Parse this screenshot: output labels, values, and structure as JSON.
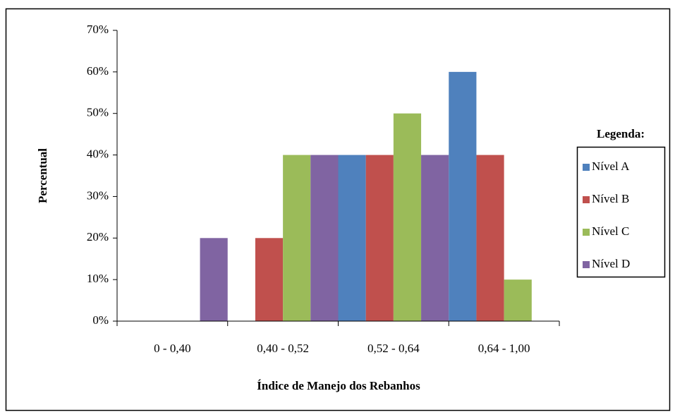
{
  "chart_data": {
    "type": "bar",
    "x_label": "Índice de Manejo dos Rebanhos",
    "y_label": "Percentual",
    "legend_title": "Legenda:",
    "categories": [
      "0 - 0,40",
      "0,40 - 0,52",
      "0,52 - 0,64",
      "0,64 - 1,00"
    ],
    "series": [
      {
        "name": "Nível A",
        "color": "#4f81bd",
        "values": [
          0,
          0,
          40,
          60
        ]
      },
      {
        "name": "Nível B",
        "color": "#c0504d",
        "values": [
          0,
          20,
          40,
          40
        ]
      },
      {
        "name": "Nível C",
        "color": "#9bbb59",
        "values": [
          0,
          40,
          50,
          10
        ]
      },
      {
        "name": "Nível D",
        "color": "#8064a2",
        "values": [
          20,
          40,
          40,
          0
        ]
      }
    ],
    "ylim": [
      0,
      70
    ],
    "yticks": [
      {
        "value": 0,
        "label": "0%"
      },
      {
        "value": 10,
        "label": "10%"
      },
      {
        "value": 20,
        "label": "20%"
      },
      {
        "value": 30,
        "label": "30%"
      },
      {
        "value": 40,
        "label": "40%"
      },
      {
        "value": 50,
        "label": "50%"
      },
      {
        "value": 60,
        "label": "60%"
      },
      {
        "value": 70,
        "label": "70%"
      }
    ],
    "legend": "right"
  }
}
